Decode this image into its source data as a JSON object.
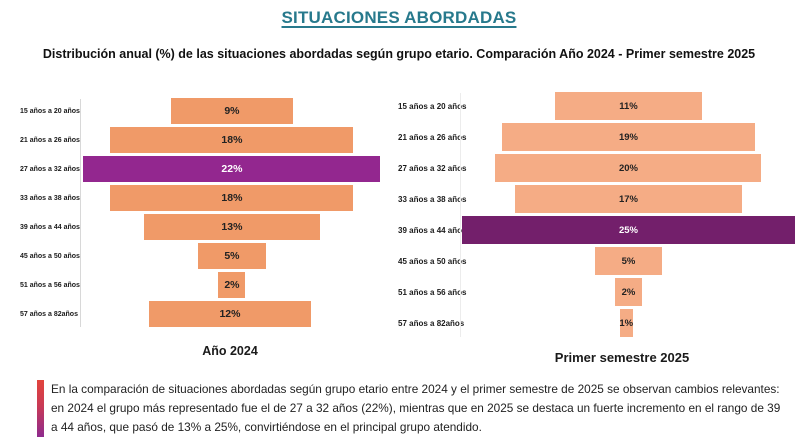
{
  "page": {
    "title": "SITUACIONES ABORDADAS",
    "subtitle": "Distribución anual (%) de las situaciones abordadas según grupo etario. Comparación Año 2024 -  Primer semestre 2025"
  },
  "colors": {
    "title_teal": "#27798C",
    "bar_orange_2024": "#F09A68",
    "bar_orange_2025": "#F5AC85",
    "highlight_purple_2024": "#93278F",
    "highlight_purple_2025": "#731F6B",
    "note_accent_top": "#E2443C",
    "note_accent_bottom": "#8E2B8E"
  },
  "chart_data": [
    {
      "type": "bar",
      "subtype": "centered-funnel-horizontal",
      "title": "Año 2024",
      "categories": [
        "15 años a 20 años",
        "21 años a 26 años",
        "27 años a 32 años",
        "33 años a 38 años",
        "39 años a 44 años",
        "45 años a 50 años",
        "51 años a 56 años",
        "57 años a 82años"
      ],
      "values": [
        9,
        18,
        22,
        18,
        13,
        5,
        2,
        12
      ],
      "value_labels": [
        "9%",
        "18%",
        "22%",
        "18%",
        "13%",
        "5%",
        "2%",
        "12%"
      ],
      "unit": "%",
      "highlight_index": 2,
      "bar_color": "#F09A68",
      "highlight_color": "#93278F",
      "grid": false,
      "legend": false
    },
    {
      "type": "bar",
      "subtype": "centered-funnel-horizontal",
      "title": "Primer semestre 2025",
      "categories": [
        "15 años a 20 años",
        "21 años a 26 años",
        "27 años a 32 años",
        "33 años a 38 años",
        "39 años a 44 años",
        "45 años a 50 años",
        "51 años a 56 años",
        "57 años a 82años"
      ],
      "values": [
        11,
        19,
        20,
        17,
        25,
        5,
        2,
        1
      ],
      "value_labels": [
        "11%",
        "19%",
        "20%",
        "17%",
        "25%",
        "5%",
        "2%",
        "1%"
      ],
      "unit": "%",
      "highlight_index": 4,
      "bar_color": "#F5AC85",
      "highlight_color": "#731F6B",
      "grid": false,
      "legend": false
    }
  ],
  "note": {
    "text": "En la comparación de situaciones abordadas según grupo etario entre 2024 y el primer semestre de 2025 se observan cambios relevantes: en 2024 el grupo más representado fue el de 27 a 32 años (22%), mientras que en 2025 se destaca un fuerte incremento en el rango de 39 a 44 años, que pasó de 13% a 25%, convirtiéndose en el principal grupo atendido."
  }
}
